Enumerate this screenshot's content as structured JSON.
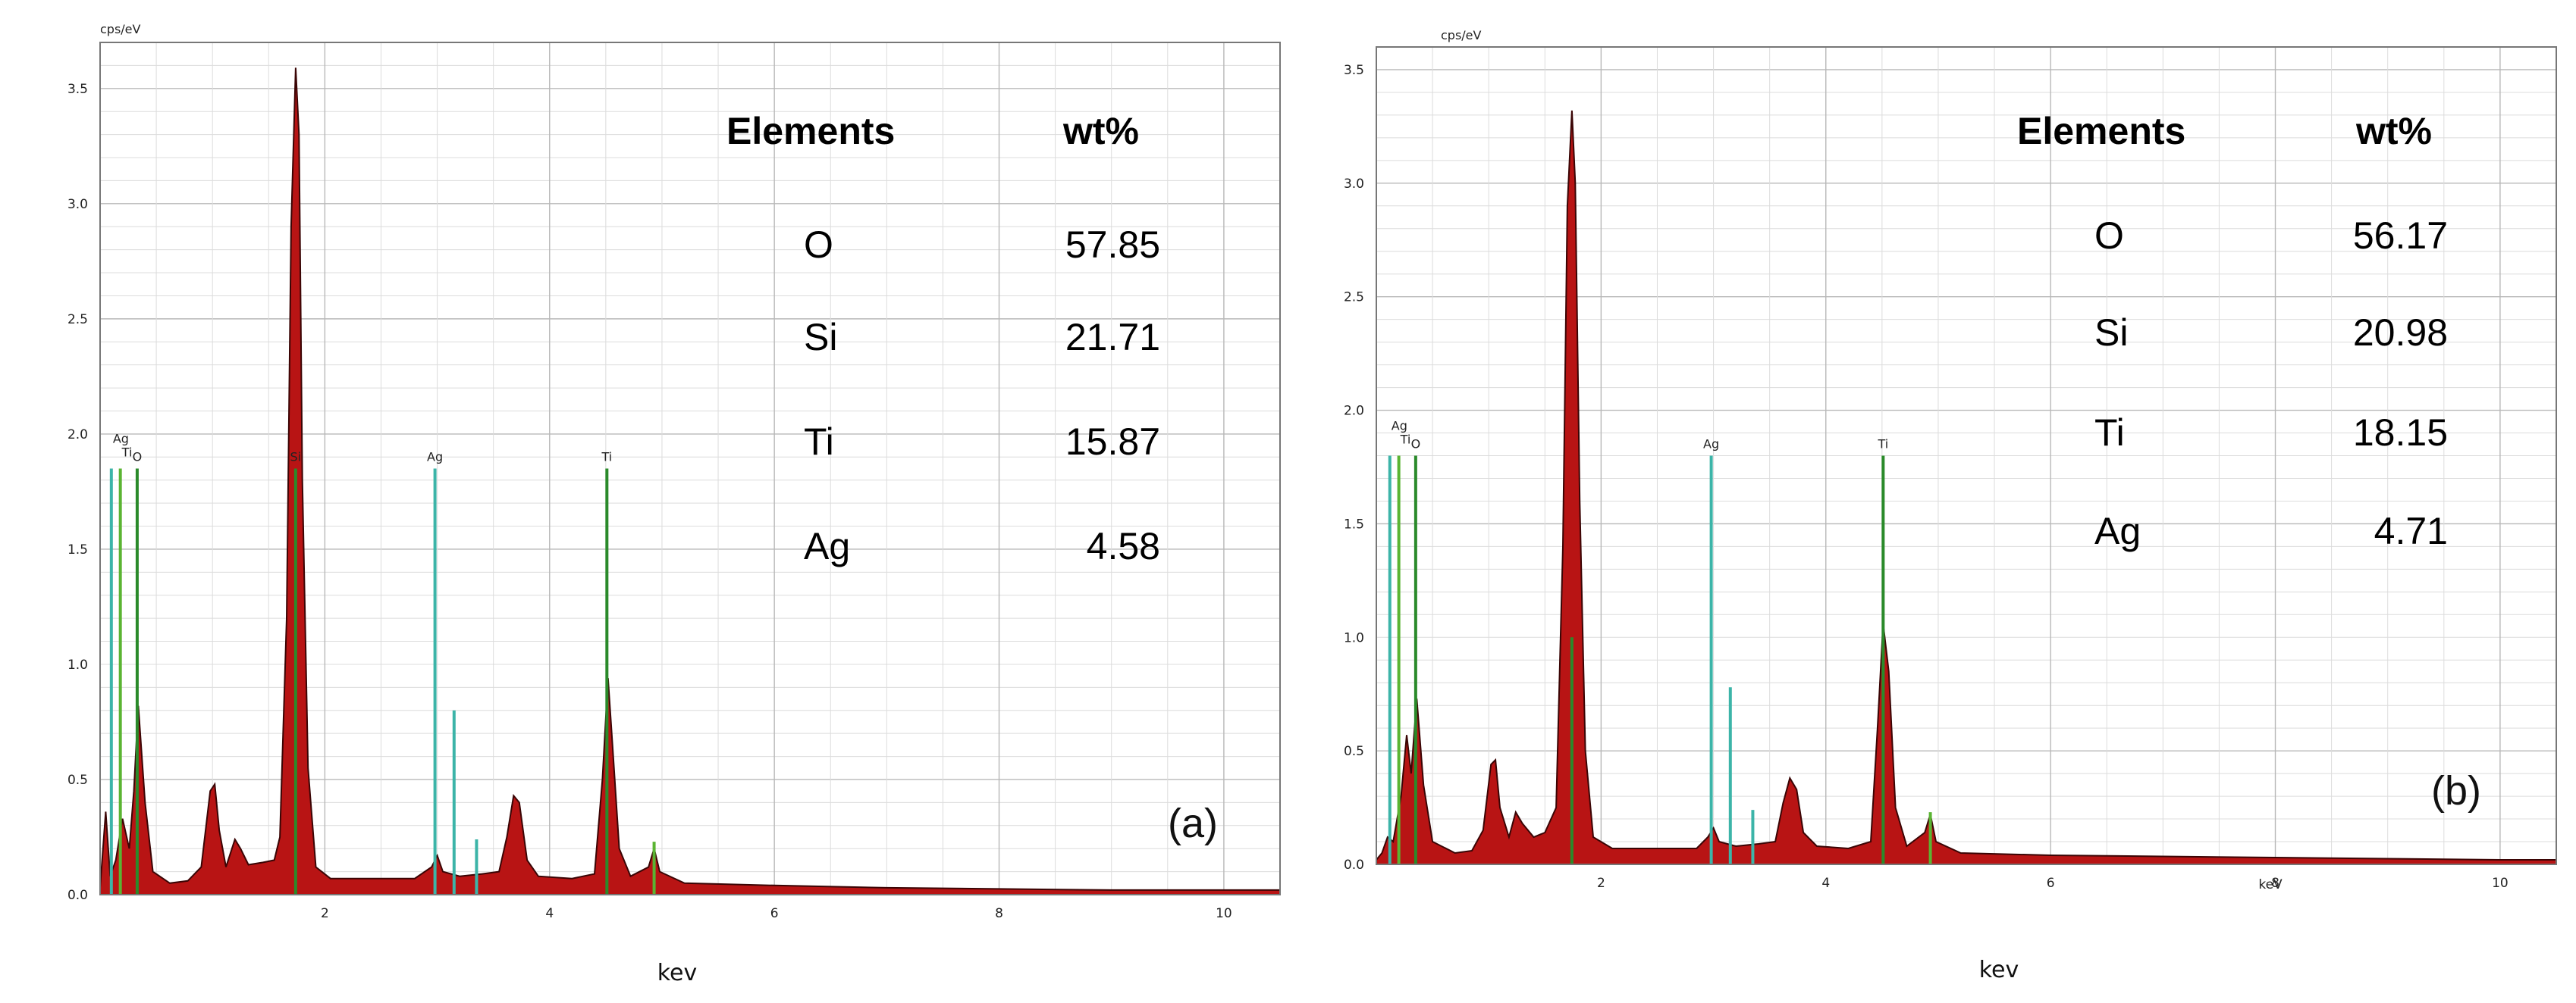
{
  "chart_data": [
    {
      "type": "area",
      "panel_label": "(a)",
      "ylabel": "cps/eV",
      "xlabel": "kev",
      "xlim": [
        0.0,
        10.5
      ],
      "ylim": [
        0,
        3.7
      ],
      "yticks": [
        "0.0",
        "0.5",
        "1.0",
        "1.5",
        "2.0",
        "2.5",
        "3.0",
        "3.5"
      ],
      "xticks": [
        "2",
        "4",
        "6",
        "8",
        "10"
      ],
      "grid": true,
      "element_lines": [
        {
          "label": "Ag",
          "x": 0.1,
          "height": 1.85,
          "color": "#3cb4a8"
        },
        {
          "label": "Ti",
          "x": 0.18,
          "height": 1.85,
          "color": "#5ab432"
        },
        {
          "label": "O",
          "x": 0.33,
          "height": 1.85,
          "color": "#2a8a2a"
        },
        {
          "label": "Si",
          "x": 1.74,
          "height": 1.85,
          "color": "#2a8a2a"
        },
        {
          "label": "Ag",
          "x": 2.98,
          "height": 1.85,
          "color": "#3cb4a8"
        },
        {
          "label": "Ti",
          "x": 4.51,
          "height": 1.85,
          "color": "#2a8a2a"
        }
      ],
      "extra_lines": [
        {
          "x": 3.15,
          "height": 0.8,
          "color": "#3cb4a8"
        },
        {
          "x": 3.35,
          "height": 0.24,
          "color": "#3cb4a8"
        },
        {
          "x": 4.93,
          "height": 0.23,
          "color": "#5ab432"
        }
      ],
      "spectrum": [
        [
          0.0,
          0.03
        ],
        [
          0.05,
          0.36
        ],
        [
          0.09,
          0.08
        ],
        [
          0.14,
          0.15
        ],
        [
          0.2,
          0.33
        ],
        [
          0.26,
          0.2
        ],
        [
          0.3,
          0.45
        ],
        [
          0.34,
          0.82
        ],
        [
          0.4,
          0.4
        ],
        [
          0.47,
          0.1
        ],
        [
          0.62,
          0.05
        ],
        [
          0.78,
          0.06
        ],
        [
          0.9,
          0.12
        ],
        [
          0.98,
          0.45
        ],
        [
          1.02,
          0.48
        ],
        [
          1.06,
          0.28
        ],
        [
          1.12,
          0.12
        ],
        [
          1.2,
          0.24
        ],
        [
          1.25,
          0.2
        ],
        [
          1.32,
          0.13
        ],
        [
          1.45,
          0.14
        ],
        [
          1.55,
          0.15
        ],
        [
          1.6,
          0.25
        ],
        [
          1.66,
          1.2
        ],
        [
          1.7,
          2.9
        ],
        [
          1.74,
          3.59
        ],
        [
          1.77,
          3.3
        ],
        [
          1.8,
          1.8
        ],
        [
          1.85,
          0.55
        ],
        [
          1.92,
          0.12
        ],
        [
          2.05,
          0.07
        ],
        [
          2.4,
          0.07
        ],
        [
          2.8,
          0.07
        ],
        [
          2.95,
          0.12
        ],
        [
          3.0,
          0.17
        ],
        [
          3.05,
          0.1
        ],
        [
          3.2,
          0.08
        ],
        [
          3.4,
          0.09
        ],
        [
          3.55,
          0.1
        ],
        [
          3.62,
          0.25
        ],
        [
          3.68,
          0.43
        ],
        [
          3.73,
          0.4
        ],
        [
          3.8,
          0.15
        ],
        [
          3.9,
          0.08
        ],
        [
          4.2,
          0.07
        ],
        [
          4.4,
          0.09
        ],
        [
          4.47,
          0.5
        ],
        [
          4.52,
          0.94
        ],
        [
          4.56,
          0.65
        ],
        [
          4.62,
          0.2
        ],
        [
          4.72,
          0.08
        ],
        [
          4.88,
          0.12
        ],
        [
          4.93,
          0.2
        ],
        [
          4.98,
          0.1
        ],
        [
          5.2,
          0.05
        ],
        [
          6.0,
          0.04
        ],
        [
          7.0,
          0.03
        ],
        [
          8.0,
          0.025
        ],
        [
          9.0,
          0.02
        ],
        [
          10.0,
          0.02
        ],
        [
          10.5,
          0.02
        ]
      ],
      "table": {
        "headers": [
          "Elements",
          "wt%"
        ],
        "rows": [
          [
            "O",
            "57.85"
          ],
          [
            "Si",
            "21.71"
          ],
          [
            "Ti",
            "15.87"
          ],
          [
            "Ag",
            "4.58"
          ]
        ]
      },
      "inner_xlabel": ""
    },
    {
      "type": "area",
      "panel_label": "(b)",
      "ylabel": "cps/eV",
      "xlabel": "kev",
      "xlim": [
        0.0,
        10.5
      ],
      "ylim": [
        0,
        3.6
      ],
      "yticks": [
        "0.0",
        "0.5",
        "1.0",
        "1.5",
        "2.0",
        "2.5",
        "3.0",
        "3.5"
      ],
      "xticks": [
        "2",
        "4",
        "6",
        "8",
        "10"
      ],
      "grid": true,
      "element_lines": [
        {
          "label": "Ag",
          "x": 0.12,
          "height": 1.8,
          "color": "#3cb4a8"
        },
        {
          "label": "Ti",
          "x": 0.2,
          "height": 1.8,
          "color": "#5ab432"
        },
        {
          "label": "O",
          "x": 0.35,
          "height": 1.8,
          "color": "#2a8a2a"
        },
        {
          "label": "Ag",
          "x": 2.98,
          "height": 1.8,
          "color": "#3cb4a8"
        },
        {
          "label": "Ti",
          "x": 4.51,
          "height": 1.8,
          "color": "#2a8a2a"
        }
      ],
      "extra_lines": [
        {
          "x": 1.74,
          "height": 1.0,
          "color": "#2a8a2a"
        },
        {
          "x": 3.15,
          "height": 0.78,
          "color": "#3cb4a8"
        },
        {
          "x": 3.35,
          "height": 0.24,
          "color": "#3cb4a8"
        },
        {
          "x": 4.93,
          "height": 0.23,
          "color": "#5ab432"
        }
      ],
      "spectrum": [
        [
          0.0,
          0.02
        ],
        [
          0.05,
          0.05
        ],
        [
          0.1,
          0.12
        ],
        [
          0.15,
          0.1
        ],
        [
          0.22,
          0.3
        ],
        [
          0.27,
          0.57
        ],
        [
          0.31,
          0.4
        ],
        [
          0.36,
          0.73
        ],
        [
          0.42,
          0.35
        ],
        [
          0.5,
          0.1
        ],
        [
          0.7,
          0.05
        ],
        [
          0.85,
          0.06
        ],
        [
          0.95,
          0.15
        ],
        [
          1.02,
          0.44
        ],
        [
          1.06,
          0.46
        ],
        [
          1.1,
          0.25
        ],
        [
          1.18,
          0.12
        ],
        [
          1.24,
          0.23
        ],
        [
          1.3,
          0.18
        ],
        [
          1.4,
          0.12
        ],
        [
          1.5,
          0.14
        ],
        [
          1.6,
          0.25
        ],
        [
          1.66,
          1.4
        ],
        [
          1.7,
          2.9
        ],
        [
          1.74,
          3.32
        ],
        [
          1.77,
          3.0
        ],
        [
          1.81,
          1.6
        ],
        [
          1.86,
          0.5
        ],
        [
          1.93,
          0.12
        ],
        [
          2.1,
          0.07
        ],
        [
          2.5,
          0.07
        ],
        [
          2.85,
          0.07
        ],
        [
          2.95,
          0.12
        ],
        [
          3.0,
          0.16
        ],
        [
          3.05,
          0.1
        ],
        [
          3.2,
          0.08
        ],
        [
          3.4,
          0.09
        ],
        [
          3.55,
          0.1
        ],
        [
          3.62,
          0.27
        ],
        [
          3.68,
          0.38
        ],
        [
          3.74,
          0.33
        ],
        [
          3.8,
          0.14
        ],
        [
          3.92,
          0.08
        ],
        [
          4.2,
          0.07
        ],
        [
          4.4,
          0.1
        ],
        [
          4.46,
          0.6
        ],
        [
          4.51,
          1.06
        ],
        [
          4.56,
          0.85
        ],
        [
          4.62,
          0.25
        ],
        [
          4.72,
          0.08
        ],
        [
          4.88,
          0.14
        ],
        [
          4.93,
          0.22
        ],
        [
          4.98,
          0.1
        ],
        [
          5.2,
          0.05
        ],
        [
          6.0,
          0.04
        ],
        [
          7.0,
          0.035
        ],
        [
          8.0,
          0.03
        ],
        [
          9.0,
          0.025
        ],
        [
          10.0,
          0.02
        ],
        [
          10.5,
          0.02
        ]
      ],
      "table": {
        "headers": [
          "Elements",
          "wt%"
        ],
        "rows": [
          [
            "O",
            "56.17"
          ],
          [
            "Si",
            "20.98"
          ],
          [
            "Ti",
            "18.15"
          ],
          [
            "Ag",
            "4.71"
          ]
        ]
      },
      "inner_xlabel": "keV"
    }
  ]
}
